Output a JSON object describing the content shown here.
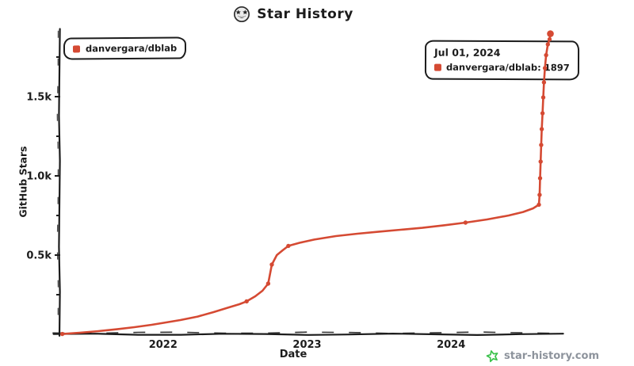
{
  "title": {
    "text": "Star History",
    "icon": "star-struck-emoji"
  },
  "legend": {
    "items": [
      {
        "label": "danvergara/dblab",
        "color": "#d54a33"
      }
    ]
  },
  "tooltip": {
    "date": "Jul 01, 2024",
    "label": "danvergara/dblab: 1897",
    "marker_color": "#d54a33"
  },
  "axes": {
    "x_title": "Date",
    "y_title": "GitHub Stars"
  },
  "footer": {
    "text": "star-history.com",
    "star_color": "#3bc24b"
  },
  "colors": {
    "ink": "#1c1c1c",
    "series_red": "#d54a33",
    "footer_gray": "#8d939c"
  },
  "chart_data": {
    "type": "line",
    "title": "Star History",
    "xlabel": "Date",
    "ylabel": "GitHub Stars",
    "grid": false,
    "legend_position": "top-left",
    "xlim": [
      2021.28,
      2024.72
    ],
    "ylim": [
      0,
      1900
    ],
    "x_ticks": [
      {
        "label": "2022",
        "t": 2022
      },
      {
        "label": "2023",
        "t": 2023
      },
      {
        "label": "2024",
        "t": 2024
      }
    ],
    "y_ticks": [
      {
        "label": "0.5k",
        "value": 500
      },
      {
        "label": "1.0k",
        "value": 1000
      },
      {
        "label": "1.5k",
        "value": 1500
      }
    ],
    "y_minor_ticks": [
      250,
      750,
      1250,
      1750
    ],
    "tooltip_point": {
      "date": "Jul 01, 2024",
      "series": "danvergara/dblab",
      "stars": 1897
    },
    "point_format": [
      "year_fraction",
      "stars",
      "marker(0=none,1=dot,2=big-dot)"
    ],
    "series": [
      {
        "name": "danvergara/dblab",
        "color": "#d54a33",
        "points": [
          [
            2021.3,
            2,
            1
          ],
          [
            2021.42,
            10,
            0
          ],
          [
            2021.55,
            20,
            0
          ],
          [
            2021.68,
            32,
            0
          ],
          [
            2021.8,
            45,
            0
          ],
          [
            2021.92,
            60,
            0
          ],
          [
            2022.0,
            72,
            0
          ],
          [
            2022.12,
            90,
            0
          ],
          [
            2022.24,
            112,
            0
          ],
          [
            2022.35,
            140,
            0
          ],
          [
            2022.45,
            168,
            0
          ],
          [
            2022.53,
            190,
            0
          ],
          [
            2022.58,
            208,
            1
          ],
          [
            2022.64,
            240,
            0
          ],
          [
            2022.69,
            275,
            0
          ],
          [
            2022.73,
            320,
            1
          ],
          [
            2022.755,
            440,
            1
          ],
          [
            2022.79,
            500,
            0
          ],
          [
            2022.83,
            530,
            0
          ],
          [
            2022.87,
            558,
            1
          ],
          [
            2022.95,
            578,
            0
          ],
          [
            2023.05,
            598,
            0
          ],
          [
            2023.2,
            620,
            0
          ],
          [
            2023.35,
            635,
            0
          ],
          [
            2023.5,
            648,
            0
          ],
          [
            2023.65,
            660,
            0
          ],
          [
            2023.8,
            672,
            0
          ],
          [
            2023.95,
            688,
            0
          ],
          [
            2024.1,
            705,
            1
          ],
          [
            2024.25,
            725,
            0
          ],
          [
            2024.4,
            750,
            0
          ],
          [
            2024.5,
            772,
            0
          ],
          [
            2024.57,
            795,
            0
          ],
          [
            2024.61,
            818,
            1
          ],
          [
            2024.615,
            880,
            1
          ],
          [
            2024.618,
            985,
            1
          ],
          [
            2024.622,
            1090,
            1
          ],
          [
            2024.626,
            1195,
            1
          ],
          [
            2024.63,
            1295,
            1
          ],
          [
            2024.635,
            1395,
            1
          ],
          [
            2024.64,
            1495,
            1
          ],
          [
            2024.645,
            1590,
            1
          ],
          [
            2024.652,
            1680,
            1
          ],
          [
            2024.66,
            1762,
            1
          ],
          [
            2024.672,
            1830,
            1
          ],
          [
            2024.684,
            1862,
            1
          ],
          [
            2024.69,
            1897,
            2
          ]
        ]
      }
    ]
  }
}
